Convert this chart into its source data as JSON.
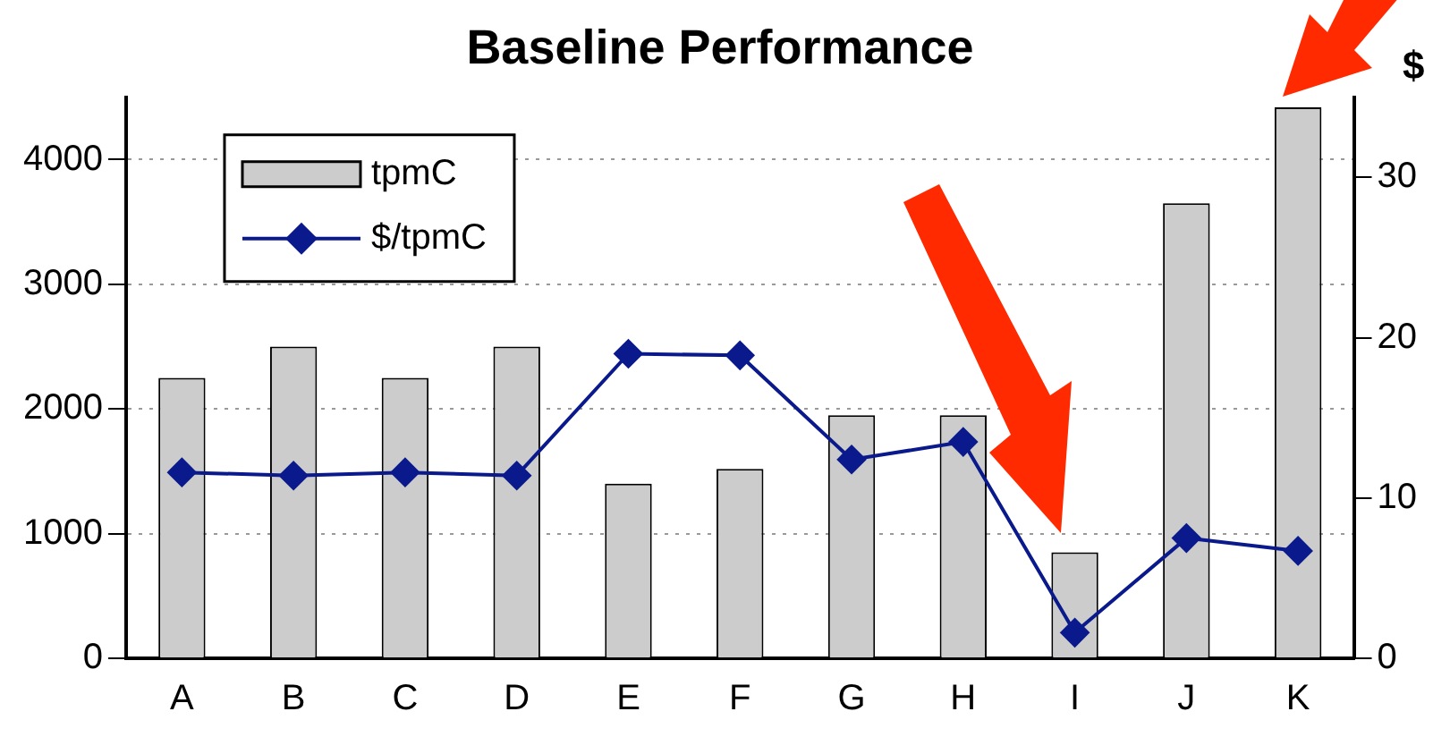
{
  "chart_data": {
    "type": "bar",
    "title": "Baseline Performance",
    "y2label": "$",
    "categories": [
      "A",
      "B",
      "C",
      "D",
      "E",
      "F",
      "G",
      "H",
      "I",
      "J",
      "K"
    ],
    "series": [
      {
        "name": "tpmC",
        "color": "#cccccc",
        "values": [
          2250,
          2500,
          2250,
          2500,
          1400,
          1520,
          1950,
          1950,
          850,
          3650,
          4420
        ]
      },
      {
        "name": "$/tpmC",
        "type": "line",
        "axis": "y2",
        "color": "#0a1a8c",
        "values": [
          11.6,
          11.4,
          11.6,
          11.4,
          19.0,
          18.9,
          12.4,
          13.5,
          1.6,
          7.5,
          6.7
        ]
      }
    ],
    "ylim": [
      0,
      4500
    ],
    "yticks": [
      0,
      1000,
      2000,
      3000,
      4000
    ],
    "y2lim": [
      0,
      35
    ],
    "y2ticks": [
      0,
      10,
      20,
      30
    ],
    "grid": "y",
    "legend": "top left",
    "marker": "diamond",
    "line_style": "solid"
  }
}
